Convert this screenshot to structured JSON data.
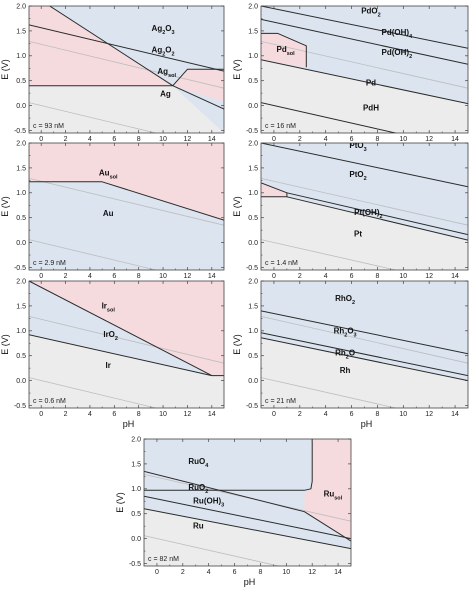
{
  "colors": {
    "ox": "#dbe4ef",
    "sol": "#f6dbde",
    "metal": "#ececec",
    "ref": "#bdbdbd",
    "bound": "#2b2b2b",
    "border": "#444444"
  },
  "axes": {
    "xlabel": "pH",
    "ylabel": "E (V)",
    "xticks": [
      "0",
      "2",
      "4",
      "6",
      "8",
      "10",
      "12",
      "14"
    ],
    "yticks": [
      "-0.5",
      "0.0",
      "0.5",
      "1.0",
      "1.5",
      "2.0"
    ]
  },
  "chart_data": [
    {
      "type": "area",
      "element": "Ag",
      "concentration_label": "c = 93 nM",
      "xlim": [
        -1,
        15
      ],
      "ylim": [
        -0.55,
        2.0
      ],
      "grid": false,
      "legend": "none",
      "show_xlabel": false,
      "show_ylabel": true,
      "background": "ox",
      "regions": [
        {
          "fill": "sol",
          "points": [
            [
              -1,
              2.0
            ],
            [
              -1,
              0.4
            ],
            [
              10.8,
              0.4
            ],
            [
              0.7,
              2.0
            ]
          ]
        },
        {
          "fill": "sol",
          "points": [
            [
              10.8,
              0.4
            ],
            [
              12,
              0.73
            ],
            [
              15,
              0.73
            ],
            [
              15,
              0.08
            ]
          ]
        },
        {
          "fill": "metal",
          "points": [
            [
              -1,
              0.4
            ],
            [
              10.8,
              0.4
            ],
            [
              15,
              -0.55
            ],
            [
              -1,
              -0.55
            ]
          ]
        }
      ],
      "boundaries": [
        {
          "points": [
            [
              -1,
              0.4
            ],
            [
              10.8,
              0.4
            ],
            [
              15,
              -0.07
            ]
          ]
        },
        {
          "points": [
            [
              0.7,
              2.0
            ],
            [
              10.8,
              0.4
            ]
          ]
        },
        {
          "points": [
            [
              10.8,
              0.4
            ],
            [
              12,
              0.73
            ],
            [
              15,
              0.73
            ]
          ]
        },
        {
          "points": [
            [
              -1,
              1.62
            ],
            [
              15,
              0.69
            ]
          ]
        }
      ],
      "reference_lines": [
        [
          [
            -1,
            1.29
          ],
          [
            15,
            0.35
          ]
        ],
        [
          [
            -1,
            0.06
          ],
          [
            15,
            -0.88
          ]
        ]
      ],
      "labels": [
        {
          "x": 10,
          "y": 1.5,
          "text": "Ag",
          "sub": "2",
          "post": "O",
          "sub2": "3"
        },
        {
          "x": 10,
          "y": 1.07,
          "text": "Ag",
          "sub": "2",
          "post": "O",
          "sub2": "2"
        },
        {
          "x": 10.3,
          "y": 0.63,
          "text": "Ag",
          "sub": "sol"
        },
        {
          "x": 10.2,
          "y": 0.18,
          "text": "Ag"
        }
      ]
    },
    {
      "type": "area",
      "element": "Pd",
      "concentration_label": "c = 16 nM",
      "xlim": [
        -1,
        15
      ],
      "ylim": [
        -0.55,
        2.0
      ],
      "grid": false,
      "legend": "none",
      "show_xlabel": false,
      "show_ylabel": true,
      "background": "ox",
      "regions": [
        {
          "fill": "sol",
          "points": [
            [
              -1,
              1.45
            ],
            [
              -1,
              0.92
            ],
            [
              2.5,
              0.77
            ],
            [
              2.5,
              1.2
            ],
            [
              0.3,
              1.45
            ]
          ]
        },
        {
          "fill": "metal",
          "points": [
            [
              -1,
              0.92
            ],
            [
              15,
              0.04
            ],
            [
              15,
              -0.55
            ],
            [
              -1,
              -0.55
            ]
          ]
        }
      ],
      "boundaries": [
        {
          "points": [
            [
              -1,
              1.45
            ],
            [
              0.3,
              1.45
            ],
            [
              2.5,
              1.2
            ],
            [
              2.5,
              0.77
            ]
          ]
        },
        {
          "points": [
            [
              -1,
              0.92
            ],
            [
              15,
              0.04
            ]
          ]
        },
        {
          "points": [
            [
              -1,
              2.0
            ],
            [
              15,
              1.15
            ]
          ]
        },
        {
          "points": [
            [
              -1,
              1.73
            ],
            [
              15,
              0.83
            ]
          ]
        },
        {
          "points": [
            [
              -1,
              0.06
            ],
            [
              15,
              -0.88
            ]
          ]
        }
      ],
      "reference_lines": [
        [
          [
            -1,
            1.29
          ],
          [
            15,
            0.35
          ]
        ]
      ],
      "labels": [
        {
          "x": 7.5,
          "y": 1.85,
          "text": "PdO",
          "sub": "2"
        },
        {
          "x": 9.5,
          "y": 1.42,
          "text": "Pd(OH)",
          "sub": "4"
        },
        {
          "x": 9.5,
          "y": 1.02,
          "text": "Pd(OH)",
          "sub": "2"
        },
        {
          "x": 0.9,
          "y": 1.08,
          "text": "Pd",
          "sub": "sol"
        },
        {
          "x": 7.5,
          "y": 0.4,
          "text": "Pd"
        },
        {
          "x": 7.5,
          "y": -0.1,
          "text": "PdH"
        }
      ]
    },
    {
      "type": "area",
      "element": "Au",
      "concentration_label": "c = 2.9 nM",
      "xlim": [
        -1,
        15
      ],
      "ylim": [
        -0.55,
        2.0
      ],
      "grid": false,
      "legend": "none",
      "show_xlabel": false,
      "show_ylabel": true,
      "background": "ox",
      "regions": [
        {
          "fill": "sol",
          "points": [
            [
              -1,
              2.0
            ],
            [
              15,
              2.0
            ],
            [
              15,
              0.45
            ],
            [
              5,
              1.22
            ],
            [
              -1,
              1.22
            ]
          ]
        }
      ],
      "boundaries": [
        {
          "points": [
            [
              -1,
              1.22
            ],
            [
              5,
              1.22
            ],
            [
              15,
              0.45
            ]
          ]
        }
      ],
      "reference_lines": [
        [
          [
            -1,
            1.29
          ],
          [
            15,
            0.35
          ]
        ],
        [
          [
            -1,
            0.06
          ],
          [
            15,
            -0.88
          ]
        ]
      ],
      "labels": [
        {
          "x": 5.5,
          "y": 1.35,
          "text": "Au",
          "sub": "sol"
        },
        {
          "x": 5.5,
          "y": 0.53,
          "text": "Au"
        }
      ]
    },
    {
      "type": "area",
      "element": "Pt",
      "concentration_label": "c = 1.4 nM",
      "xlim": [
        -1,
        15
      ],
      "ylim": [
        -0.55,
        2.0
      ],
      "grid": false,
      "legend": "none",
      "show_xlabel": false,
      "show_ylabel": true,
      "background": "ox",
      "regions": [
        {
          "fill": "sol",
          "points": [
            [
              -1,
              1.2
            ],
            [
              -1,
              0.92
            ],
            [
              1,
              0.92
            ],
            [
              1,
              1.0
            ]
          ]
        },
        {
          "fill": "metal",
          "points": [
            [
              -1,
              0.92
            ],
            [
              1,
              0.92
            ],
            [
              15,
              0.05
            ],
            [
              15,
              -0.55
            ],
            [
              -1,
              -0.55
            ]
          ]
        }
      ],
      "boundaries": [
        {
          "points": [
            [
              -1,
              0.92
            ],
            [
              1,
              0.92
            ],
            [
              1,
              1.0
            ],
            [
              -1,
              1.2
            ]
          ]
        },
        {
          "points": [
            [
              1,
              0.92
            ],
            [
              15,
              0.05
            ]
          ]
        },
        {
          "points": [
            [
              1,
              1.0
            ],
            [
              15,
              0.16
            ]
          ]
        },
        {
          "points": [
            [
              -1,
              2.0
            ],
            [
              15,
              1.12
            ]
          ]
        }
      ],
      "reference_lines": [
        [
          [
            -1,
            1.29
          ],
          [
            15,
            0.35
          ]
        ],
        [
          [
            -1,
            0.06
          ],
          [
            15,
            -0.88
          ]
        ]
      ],
      "labels": [
        {
          "x": 6.5,
          "y": 1.9,
          "text": "PtO",
          "sub": "3"
        },
        {
          "x": 6.5,
          "y": 1.32,
          "text": "PtO",
          "sub": "2"
        },
        {
          "x": 7.3,
          "y": 0.55,
          "text": "Pt(OH)",
          "sub": "2"
        },
        {
          "x": 6.5,
          "y": 0.12,
          "text": "Pt"
        }
      ]
    },
    {
      "type": "area",
      "element": "Ir",
      "concentration_label": "c = 0.6 nM",
      "xlim": [
        -1,
        15
      ],
      "ylim": [
        -0.55,
        2.0
      ],
      "grid": false,
      "legend": "none",
      "show_xlabel": true,
      "show_ylabel": true,
      "background": "ox",
      "regions": [
        {
          "fill": "sol",
          "points": [
            [
              -1,
              2.0
            ],
            [
              15,
              2.0
            ],
            [
              15,
              0.1
            ],
            [
              14,
              0.1
            ]
          ]
        },
        {
          "fill": "metal",
          "points": [
            [
              -1,
              0.92
            ],
            [
              14,
              0.1
            ],
            [
              15,
              0.1
            ],
            [
              15,
              -0.55
            ],
            [
              -1,
              -0.55
            ]
          ]
        }
      ],
      "boundaries": [
        {
          "points": [
            [
              -1,
              2.0
            ],
            [
              14,
              0.1
            ]
          ]
        },
        {
          "points": [
            [
              -1,
              0.92
            ],
            [
              14,
              0.1
            ],
            [
              15,
              0.1
            ]
          ]
        }
      ],
      "reference_lines": [
        [
          [
            -1,
            1.29
          ],
          [
            15,
            0.35
          ]
        ],
        [
          [
            -1,
            0.06
          ],
          [
            15,
            -0.88
          ]
        ]
      ],
      "labels": [
        {
          "x": 5.5,
          "y": 1.45,
          "text": "Ir",
          "sub": "sol"
        },
        {
          "x": 5.7,
          "y": 0.88,
          "text": "IrO",
          "sub": "2"
        },
        {
          "x": 5.5,
          "y": 0.25,
          "text": "Ir"
        }
      ]
    },
    {
      "type": "area",
      "element": "Rh",
      "concentration_label": "c = 21 nM",
      "xlim": [
        -1,
        15
      ],
      "ylim": [
        -0.55,
        2.0
      ],
      "grid": false,
      "legend": "none",
      "show_xlabel": true,
      "show_ylabel": true,
      "background": "ox",
      "regions": [
        {
          "fill": "metal",
          "points": [
            [
              -1,
              0.86
            ],
            [
              15,
              0.0
            ],
            [
              15,
              -0.55
            ],
            [
              -1,
              -0.55
            ]
          ]
        }
      ],
      "boundaries": [
        {
          "points": [
            [
              -1,
              1.4
            ],
            [
              15,
              0.54
            ]
          ]
        },
        {
          "points": [
            [
              -1,
              0.96
            ],
            [
              15,
              0.1
            ]
          ]
        },
        {
          "points": [
            [
              -1,
              0.86
            ],
            [
              15,
              0.0
            ]
          ]
        }
      ],
      "reference_lines": [
        [
          [
            -1,
            1.29
          ],
          [
            15,
            0.35
          ]
        ],
        [
          [
            -1,
            0.06
          ],
          [
            15,
            -0.88
          ]
        ]
      ],
      "labels": [
        {
          "x": 5.5,
          "y": 1.6,
          "text": "RhO",
          "sub": "2"
        },
        {
          "x": 5.5,
          "y": 0.95,
          "text": "Rh",
          "sub": "2",
          "post": "O",
          "sub2": "3"
        },
        {
          "x": 5.5,
          "y": 0.5,
          "text": "Rh",
          "sub": "2",
          "post": "O"
        },
        {
          "x": 5.5,
          "y": 0.15,
          "text": "Rh"
        }
      ]
    },
    {
      "type": "area",
      "element": "Ru",
      "concentration_label": "c = 82 nM",
      "xlim": [
        -1,
        15
      ],
      "ylim": [
        -0.55,
        2.0
      ],
      "grid": false,
      "legend": "none",
      "show_xlabel": true,
      "show_ylabel": true,
      "background": "ox",
      "regions": [
        {
          "fill": "sol",
          "points": [
            [
              12,
              2.0
            ],
            [
              15,
              2.0
            ],
            [
              15,
              -0.05
            ],
            [
              11.4,
              0.54
            ],
            [
              11.4,
              0.9
            ],
            [
              11.9,
              1.0
            ],
            [
              12,
              1.15
            ]
          ]
        },
        {
          "fill": "metal",
          "points": [
            [
              -1,
              0.6
            ],
            [
              15,
              -0.2
            ],
            [
              15,
              -0.55
            ],
            [
              -1,
              -0.55
            ]
          ]
        }
      ],
      "boundaries": [
        {
          "points": [
            [
              12,
              2.0
            ],
            [
              12,
              1.15
            ],
            [
              11.9,
              1.0
            ],
            [
              11.4,
              0.97
            ],
            [
              -1,
              0.97
            ]
          ]
        },
        {
          "points": [
            [
              -1,
              1.35
            ],
            [
              11.4,
              0.54
            ],
            [
              15,
              -0.05
            ]
          ]
        },
        {
          "points": [
            [
              -1,
              0.85
            ],
            [
              15,
              0.0
            ]
          ]
        },
        {
          "points": [
            [
              -1,
              0.6
            ],
            [
              15,
              -0.2
            ]
          ]
        }
      ],
      "reference_lines": [
        [
          [
            -1,
            1.29
          ],
          [
            15,
            0.35
          ]
        ],
        [
          [
            -1,
            0.06
          ],
          [
            15,
            -0.88
          ]
        ]
      ],
      "labels": [
        {
          "x": 3.2,
          "y": 1.5,
          "text": "RuO",
          "sub": "4"
        },
        {
          "x": 3.2,
          "y": 0.98,
          "text": "RuO",
          "sub": "2"
        },
        {
          "x": 4.0,
          "y": 0.7,
          "text": "Ru(OH)",
          "sub": "3"
        },
        {
          "x": 13.6,
          "y": 0.85,
          "text": "Ru",
          "sub": "sol"
        },
        {
          "x": 3.2,
          "y": 0.2,
          "text": "Ru"
        }
      ]
    }
  ]
}
